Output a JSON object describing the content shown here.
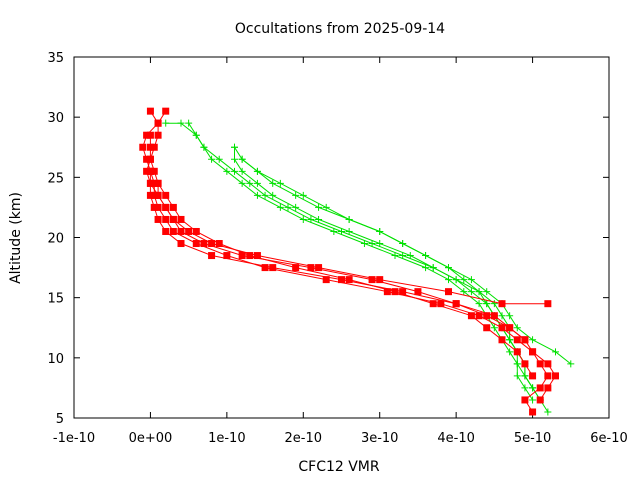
{
  "chart_data": {
    "type": "line",
    "title": "Occultations from 2025-09-14",
    "xlabel": "CFC12 VMR",
    "ylabel": "Altitude (km)",
    "xlim": [
      -1e-10,
      6e-10
    ],
    "ylim": [
      5,
      35
    ],
    "x_ticks": [
      {
        "value": -1e-10,
        "label": "-1e-10"
      },
      {
        "value": 0,
        "label": "0e+00"
      },
      {
        "value": 1e-10,
        "label": "1e-10"
      },
      {
        "value": 2e-10,
        "label": "2e-10"
      },
      {
        "value": 3e-10,
        "label": "3e-10"
      },
      {
        "value": 4e-10,
        "label": "4e-10"
      },
      {
        "value": 5e-10,
        "label": "5e-10"
      },
      {
        "value": 6e-10,
        "label": "6e-10"
      }
    ],
    "y_ticks": [
      {
        "value": 5,
        "label": "5"
      },
      {
        "value": 10,
        "label": "10"
      },
      {
        "value": 15,
        "label": "15"
      },
      {
        "value": 20,
        "label": "20"
      },
      {
        "value": 25,
        "label": "25"
      },
      {
        "value": 30,
        "label": "30"
      },
      {
        "value": 35,
        "label": "35"
      }
    ],
    "grid": false,
    "legend": "none",
    "series": [
      {
        "color": "#00e000",
        "marker": "plus",
        "points": [
          [
            5.2e-10,
            5.5
          ],
          [
            5.1e-10,
            6.5
          ],
          [
            5e-10,
            7.5
          ],
          [
            4.9e-10,
            8.5
          ],
          [
            4.9e-10,
            9.5
          ],
          [
            4.8e-10,
            10.5
          ],
          [
            4.7e-10,
            11.5
          ],
          [
            4.6e-10,
            12.5
          ],
          [
            4.5e-10,
            13.5
          ],
          [
            4.4e-10,
            14.5
          ],
          [
            4.2e-10,
            15.5
          ],
          [
            4e-10,
            16.5
          ],
          [
            3.7e-10,
            17.5
          ],
          [
            3.3e-10,
            18.5
          ],
          [
            2.9e-10,
            19.5
          ],
          [
            2.5e-10,
            20.5
          ],
          [
            2.1e-10,
            21.5
          ],
          [
            1.8e-10,
            22.5
          ],
          [
            1.5e-10,
            23.5
          ],
          [
            1.3e-10,
            24.5
          ],
          [
            1.1e-10,
            25.5
          ],
          [
            9e-11,
            26.5
          ],
          [
            7e-11,
            27.5
          ],
          [
            6e-11,
            28.5
          ],
          [
            5e-11,
            29.5
          ]
        ]
      },
      {
        "color": "#00e000",
        "marker": "plus",
        "points": [
          [
            5e-10,
            6.5
          ],
          [
            4.9e-10,
            7.5
          ],
          [
            4.8e-10,
            8.5
          ],
          [
            4.8e-10,
            9.5
          ],
          [
            4.7e-10,
            10.5
          ],
          [
            4.6e-10,
            11.5
          ],
          [
            4.5e-10,
            12.5
          ],
          [
            4.4e-10,
            13.5
          ],
          [
            4.3e-10,
            14.5
          ],
          [
            4.1e-10,
            15.5
          ],
          [
            3.9e-10,
            16.5
          ],
          [
            3.6e-10,
            17.5
          ],
          [
            3.2e-10,
            18.5
          ],
          [
            2.8e-10,
            19.5
          ],
          [
            2.4e-10,
            20.5
          ],
          [
            2e-10,
            21.5
          ],
          [
            1.7e-10,
            22.5
          ],
          [
            1.4e-10,
            23.5
          ],
          [
            1.2e-10,
            24.5
          ],
          [
            1e-10,
            25.5
          ],
          [
            8e-11,
            26.5
          ],
          [
            7e-11,
            27.5
          ],
          [
            6e-11,
            28.5
          ],
          [
            4e-11,
            29.5
          ],
          [
            2e-11,
            29.5
          ]
        ]
      },
      {
        "color": "#00e000",
        "marker": "plus",
        "points": [
          [
            5.5e-10,
            9.5
          ],
          [
            5.3e-10,
            10.5
          ],
          [
            5e-10,
            11.5
          ],
          [
            4.8e-10,
            12.5
          ],
          [
            4.7e-10,
            13.5
          ],
          [
            4.6e-10,
            14.5
          ],
          [
            4.4e-10,
            15.5
          ],
          [
            4.2e-10,
            16.5
          ],
          [
            3.9e-10,
            17.5
          ],
          [
            3.6e-10,
            18.5
          ],
          [
            3.3e-10,
            19.5
          ],
          [
            3e-10,
            20.5
          ],
          [
            2.6e-10,
            21.5
          ],
          [
            2.2e-10,
            22.5
          ],
          [
            1.9e-10,
            23.5
          ],
          [
            1.6e-10,
            24.5
          ],
          [
            1.4e-10,
            25.5
          ],
          [
            1.2e-10,
            26.5
          ],
          [
            1.1e-10,
            27.5
          ]
        ]
      },
      {
        "color": "#00e000",
        "marker": "plus",
        "points": [
          [
            5.1e-10,
            6.5
          ],
          [
            5e-10,
            7.5
          ],
          [
            4.9e-10,
            8.5
          ],
          [
            4.9e-10,
            9.5
          ],
          [
            4.8e-10,
            10.5
          ],
          [
            4.7e-10,
            11.5
          ],
          [
            4.6e-10,
            12.5
          ],
          [
            4.5e-10,
            13.5
          ],
          [
            4.4e-10,
            14.5
          ],
          [
            4.3e-10,
            15.5
          ],
          [
            4.1e-10,
            16.5
          ],
          [
            3.9e-10,
            17.5
          ],
          [
            3.6e-10,
            18.5
          ],
          [
            3.3e-10,
            19.5
          ],
          [
            3e-10,
            20.5
          ],
          [
            2.6e-10,
            21.5
          ],
          [
            2.3e-10,
            22.5
          ],
          [
            2e-10,
            23.5
          ],
          [
            1.7e-10,
            24.5
          ],
          [
            1.4e-10,
            25.5
          ],
          [
            1.2e-10,
            26.5
          ]
        ]
      },
      {
        "color": "#00e000",
        "marker": "plus",
        "points": [
          [
            5e-10,
            7.5
          ],
          [
            4.9e-10,
            8.5
          ],
          [
            4.8e-10,
            9.5
          ],
          [
            4.8e-10,
            10.5
          ],
          [
            4.7e-10,
            11.5
          ],
          [
            4.7e-10,
            12.5
          ],
          [
            4.6e-10,
            13.5
          ],
          [
            4.5e-10,
            14.5
          ],
          [
            4.3e-10,
            15.5
          ],
          [
            4e-10,
            16.5
          ],
          [
            3.7e-10,
            17.5
          ],
          [
            3.4e-10,
            18.5
          ],
          [
            3e-10,
            19.5
          ],
          [
            2.6e-10,
            20.5
          ],
          [
            2.2e-10,
            21.5
          ],
          [
            1.9e-10,
            22.5
          ],
          [
            1.6e-10,
            23.5
          ],
          [
            1.4e-10,
            24.5
          ],
          [
            1.2e-10,
            25.5
          ],
          [
            1.1e-10,
            26.5
          ],
          [
            1.1e-10,
            27.5
          ]
        ]
      },
      {
        "color": "#ff0000",
        "marker": "square",
        "points": [
          [
            5e-10,
            5.5
          ],
          [
            4.9e-10,
            6.5
          ],
          [
            5.1e-10,
            7.5
          ],
          [
            5.2e-10,
            8.5
          ],
          [
            5.1e-10,
            9.5
          ],
          [
            5e-10,
            10.5
          ],
          [
            4.9e-10,
            11.5
          ],
          [
            4.7e-10,
            12.5
          ],
          [
            4.5e-10,
            13.5
          ],
          [
            4e-10,
            14.5
          ],
          [
            3.3e-10,
            15.5
          ],
          [
            2.5e-10,
            16.5
          ],
          [
            1.6e-10,
            17.5
          ],
          [
            8e-11,
            18.5
          ],
          [
            4e-11,
            19.5
          ],
          [
            2e-11,
            20.5
          ],
          [
            1e-11,
            21.5
          ],
          [
            5e-12,
            22.5
          ],
          [
            0.0,
            23.5
          ],
          [
            0.0,
            24.5
          ],
          [
            -5e-12,
            25.5
          ],
          [
            0.0,
            26.5
          ],
          [
            5e-12,
            27.5
          ],
          [
            1e-11,
            28.5
          ],
          [
            1e-11,
            29.5
          ],
          [
            0.0,
            30.5
          ]
        ]
      },
      {
        "color": "#ff0000",
        "marker": "square",
        "points": [
          [
            5.1e-10,
            6.5
          ],
          [
            5.2e-10,
            7.5
          ],
          [
            5.3e-10,
            8.5
          ],
          [
            5.2e-10,
            9.5
          ],
          [
            5e-10,
            10.5
          ],
          [
            4.8e-10,
            11.5
          ],
          [
            4.6e-10,
            12.5
          ],
          [
            4.3e-10,
            13.5
          ],
          [
            3.8e-10,
            14.5
          ],
          [
            3.1e-10,
            15.5
          ],
          [
            2.3e-10,
            16.5
          ],
          [
            1.5e-10,
            17.5
          ],
          [
            1e-10,
            18.5
          ],
          [
            6e-11,
            19.5
          ],
          [
            3e-11,
            20.5
          ],
          [
            2e-11,
            21.5
          ],
          [
            1e-11,
            22.5
          ],
          [
            5e-12,
            23.5
          ],
          [
            5e-12,
            24.5
          ],
          [
            0.0,
            25.5
          ],
          [
            -5e-12,
            26.5
          ],
          [
            -1e-11,
            27.5
          ],
          [
            -5e-12,
            28.5
          ],
          [
            1e-11,
            29.5
          ],
          [
            2e-11,
            30.5
          ]
        ]
      },
      {
        "color": "#ff0000",
        "marker": "square",
        "points": [
          [
            5.2e-10,
            14.5
          ],
          [
            4.6e-10,
            14.5
          ],
          [
            3.9e-10,
            15.5
          ],
          [
            3e-10,
            16.5
          ],
          [
            2.2e-10,
            17.5
          ],
          [
            1.4e-10,
            18.5
          ],
          [
            8e-11,
            19.5
          ],
          [
            5e-11,
            20.5
          ],
          [
            3e-11,
            21.5
          ],
          [
            2e-11,
            22.5
          ],
          [
            1e-11,
            23.5
          ],
          [
            0.0,
            24.5
          ],
          [
            0.0,
            25.5
          ]
        ]
      },
      {
        "color": "#ff0000",
        "marker": "square",
        "points": [
          [
            5e-10,
            8.5
          ],
          [
            4.9e-10,
            9.5
          ],
          [
            4.8e-10,
            10.5
          ],
          [
            4.6e-10,
            11.5
          ],
          [
            4.4e-10,
            12.5
          ],
          [
            4.2e-10,
            13.5
          ],
          [
            3.7e-10,
            14.5
          ],
          [
            3.2e-10,
            15.5
          ],
          [
            2.6e-10,
            16.5
          ],
          [
            1.9e-10,
            17.5
          ],
          [
            1.3e-10,
            18.5
          ],
          [
            9e-11,
            19.5
          ],
          [
            6e-11,
            20.5
          ],
          [
            4e-11,
            21.5
          ],
          [
            3e-11,
            22.5
          ],
          [
            2e-11,
            23.5
          ],
          [
            1e-11,
            24.5
          ],
          [
            5e-12,
            25.5
          ],
          [
            0.0,
            26.5
          ],
          [
            0.0,
            27.5
          ],
          [
            0.0,
            28.5
          ]
        ]
      },
      {
        "color": "#ff0000",
        "marker": "square",
        "points": [
          [
            4.9e-10,
            11.5
          ],
          [
            4.7e-10,
            12.5
          ],
          [
            4.4e-10,
            13.5
          ],
          [
            4e-10,
            14.5
          ],
          [
            3.5e-10,
            15.5
          ],
          [
            2.9e-10,
            16.5
          ],
          [
            2.1e-10,
            17.5
          ],
          [
            1.2e-10,
            18.5
          ],
          [
            7e-11,
            19.5
          ],
          [
            4e-11,
            20.5
          ],
          [
            3e-11,
            21.5
          ],
          [
            2e-11,
            22.5
          ],
          [
            1e-11,
            23.5
          ],
          [
            1e-11,
            24.5
          ]
        ]
      }
    ]
  }
}
